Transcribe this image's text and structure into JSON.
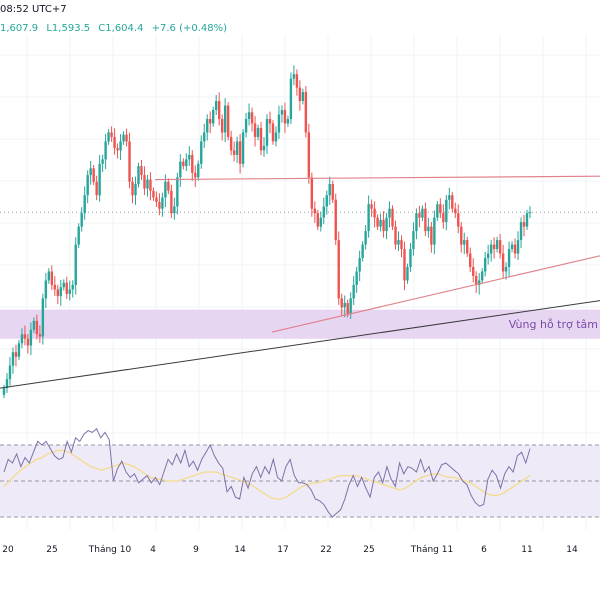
{
  "header": {
    "time": "08:52 UTC+7",
    "high": "1,607.9",
    "high_prefix": "",
    "low": "L1,593.5",
    "close": "C1,604.4",
    "change": "+7.6 (+0.48%)"
  },
  "colors": {
    "up": "#26a69a",
    "down": "#ef5350",
    "zone": "#e7d6f2",
    "zone_text": "#7b4aa8",
    "resistance": "#e0828b",
    "trendline": "#3a3a3a",
    "rsi": "#7e70a8",
    "rsi_ma": "#f2dc8c",
    "rsi_band": "#efeaf7"
  },
  "chart_data": {
    "type": "candlestick",
    "title": "",
    "ylim": [
      1514,
      1679
    ],
    "last_close": 1604.4,
    "x_ticks": [
      "20",
      "25",
      "Tháng 10",
      "4",
      "9",
      "14",
      "17",
      "22",
      "25",
      "Tháng 11",
      "6",
      "11",
      "14"
    ],
    "closes": [
      1526,
      1530,
      1536,
      1542,
      1540,
      1546,
      1550,
      1548,
      1545,
      1552,
      1556,
      1550,
      1549,
      1566,
      1574,
      1578,
      1572,
      1570,
      1567,
      1571,
      1573,
      1568,
      1570,
      1572,
      1590,
      1598,
      1604,
      1612,
      1621,
      1624,
      1618,
      1612,
      1626,
      1628,
      1636,
      1640,
      1638,
      1633,
      1632,
      1636,
      1639,
      1636,
      1618,
      1612,
      1617,
      1625,
      1621,
      1615,
      1619,
      1614,
      1611,
      1609,
      1606,
      1611,
      1618,
      1614,
      1604,
      1607,
      1620,
      1627,
      1625,
      1628,
      1630,
      1622,
      1620,
      1626,
      1636,
      1640,
      1646,
      1644,
      1650,
      1654,
      1646,
      1640,
      1652,
      1638,
      1632,
      1630,
      1636,
      1626,
      1640,
      1646,
      1649,
      1644,
      1638,
      1642,
      1632,
      1634,
      1646,
      1644,
      1636,
      1640,
      1648,
      1650,
      1644,
      1646,
      1664,
      1666,
      1660,
      1654,
      1658,
      1640,
      1620,
      1606,
      1604,
      1598,
      1602,
      1607,
      1612,
      1617,
      1610,
      1592,
      1566,
      1562,
      1564,
      1559,
      1566,
      1572,
      1578,
      1584,
      1590,
      1596,
      1608,
      1606,
      1602,
      1598,
      1601,
      1596,
      1602,
      1606,
      1598,
      1590,
      1592,
      1588,
      1574,
      1580,
      1588,
      1596,
      1604,
      1602,
      1606,
      1596,
      1598,
      1590,
      1602,
      1608,
      1604,
      1600,
      1610,
      1612,
      1606,
      1604,
      1598,
      1590,
      1592,
      1586,
      1580,
      1576,
      1572,
      1574,
      1578,
      1584,
      1586,
      1590,
      1588,
      1592,
      1586,
      1578,
      1580,
      1588,
      1590,
      1586,
      1592,
      1600,
      1598,
      1604,
      1604.4
    ],
    "rsi": {
      "overbought": 70,
      "oversold": 30,
      "mid": 50,
      "values": [
        55,
        62,
        60,
        65,
        58,
        63,
        60,
        66,
        72,
        70,
        72,
        68,
        64,
        62,
        63,
        72,
        66,
        74,
        72,
        76,
        78,
        77,
        79,
        74,
        77,
        73,
        50,
        57,
        61,
        55,
        52,
        54,
        49,
        51,
        53,
        49,
        52,
        48,
        55,
        62,
        59,
        65,
        60,
        67,
        58,
        61,
        56,
        62,
        66,
        70,
        64,
        60,
        57,
        44,
        47,
        41,
        40,
        52,
        46,
        54,
        58,
        52,
        58,
        54,
        62,
        52,
        50,
        58,
        62,
        53,
        49,
        49,
        48,
        45,
        40,
        39,
        37,
        33,
        30,
        32,
        34,
        40,
        48,
        53,
        47,
        52,
        46,
        41,
        52,
        55,
        49,
        58,
        51,
        47,
        60,
        54,
        58,
        57,
        55,
        62,
        55,
        58,
        50,
        54,
        59,
        60,
        58,
        56,
        54,
        50,
        48,
        42,
        38,
        36,
        37,
        51,
        56,
        53,
        46,
        54,
        58,
        55,
        64,
        66,
        60,
        68
      ],
      "ma": [
        47,
        50,
        53,
        56,
        58,
        60,
        62,
        63,
        65,
        66,
        67,
        67,
        66,
        64,
        62,
        60,
        58,
        57,
        56,
        57,
        58,
        59,
        60,
        59,
        58,
        56,
        54,
        52,
        51,
        51,
        50,
        50,
        50,
        51,
        52,
        53,
        54,
        55,
        55,
        55,
        54,
        53,
        52,
        51,
        50,
        49,
        47,
        45,
        43,
        41,
        40,
        40,
        41,
        43,
        45,
        47,
        48,
        49,
        49,
        50,
        51,
        52,
        53,
        53,
        53,
        53,
        52,
        51,
        50,
        49,
        48,
        47,
        46,
        45,
        46,
        48,
        50,
        52,
        53,
        54,
        54,
        53,
        52,
        52,
        51,
        50,
        49,
        47,
        45,
        43,
        42,
        42,
        43,
        45,
        47,
        49,
        51,
        53
      ]
    },
    "support_zone": {
      "label": "Vùng hỗ trợ tâm lý",
      "label_visible": "Vùng hỗ trợ tâm",
      "from": 1548,
      "to": 1561
    },
    "resistance_line": {
      "from": 1619,
      "to": 1620.5
    },
    "rising_trendline_black": {
      "from": 1526,
      "to": 1565
    },
    "rising_trendline_red": {
      "from": 1551,
      "to": 1585
    }
  }
}
